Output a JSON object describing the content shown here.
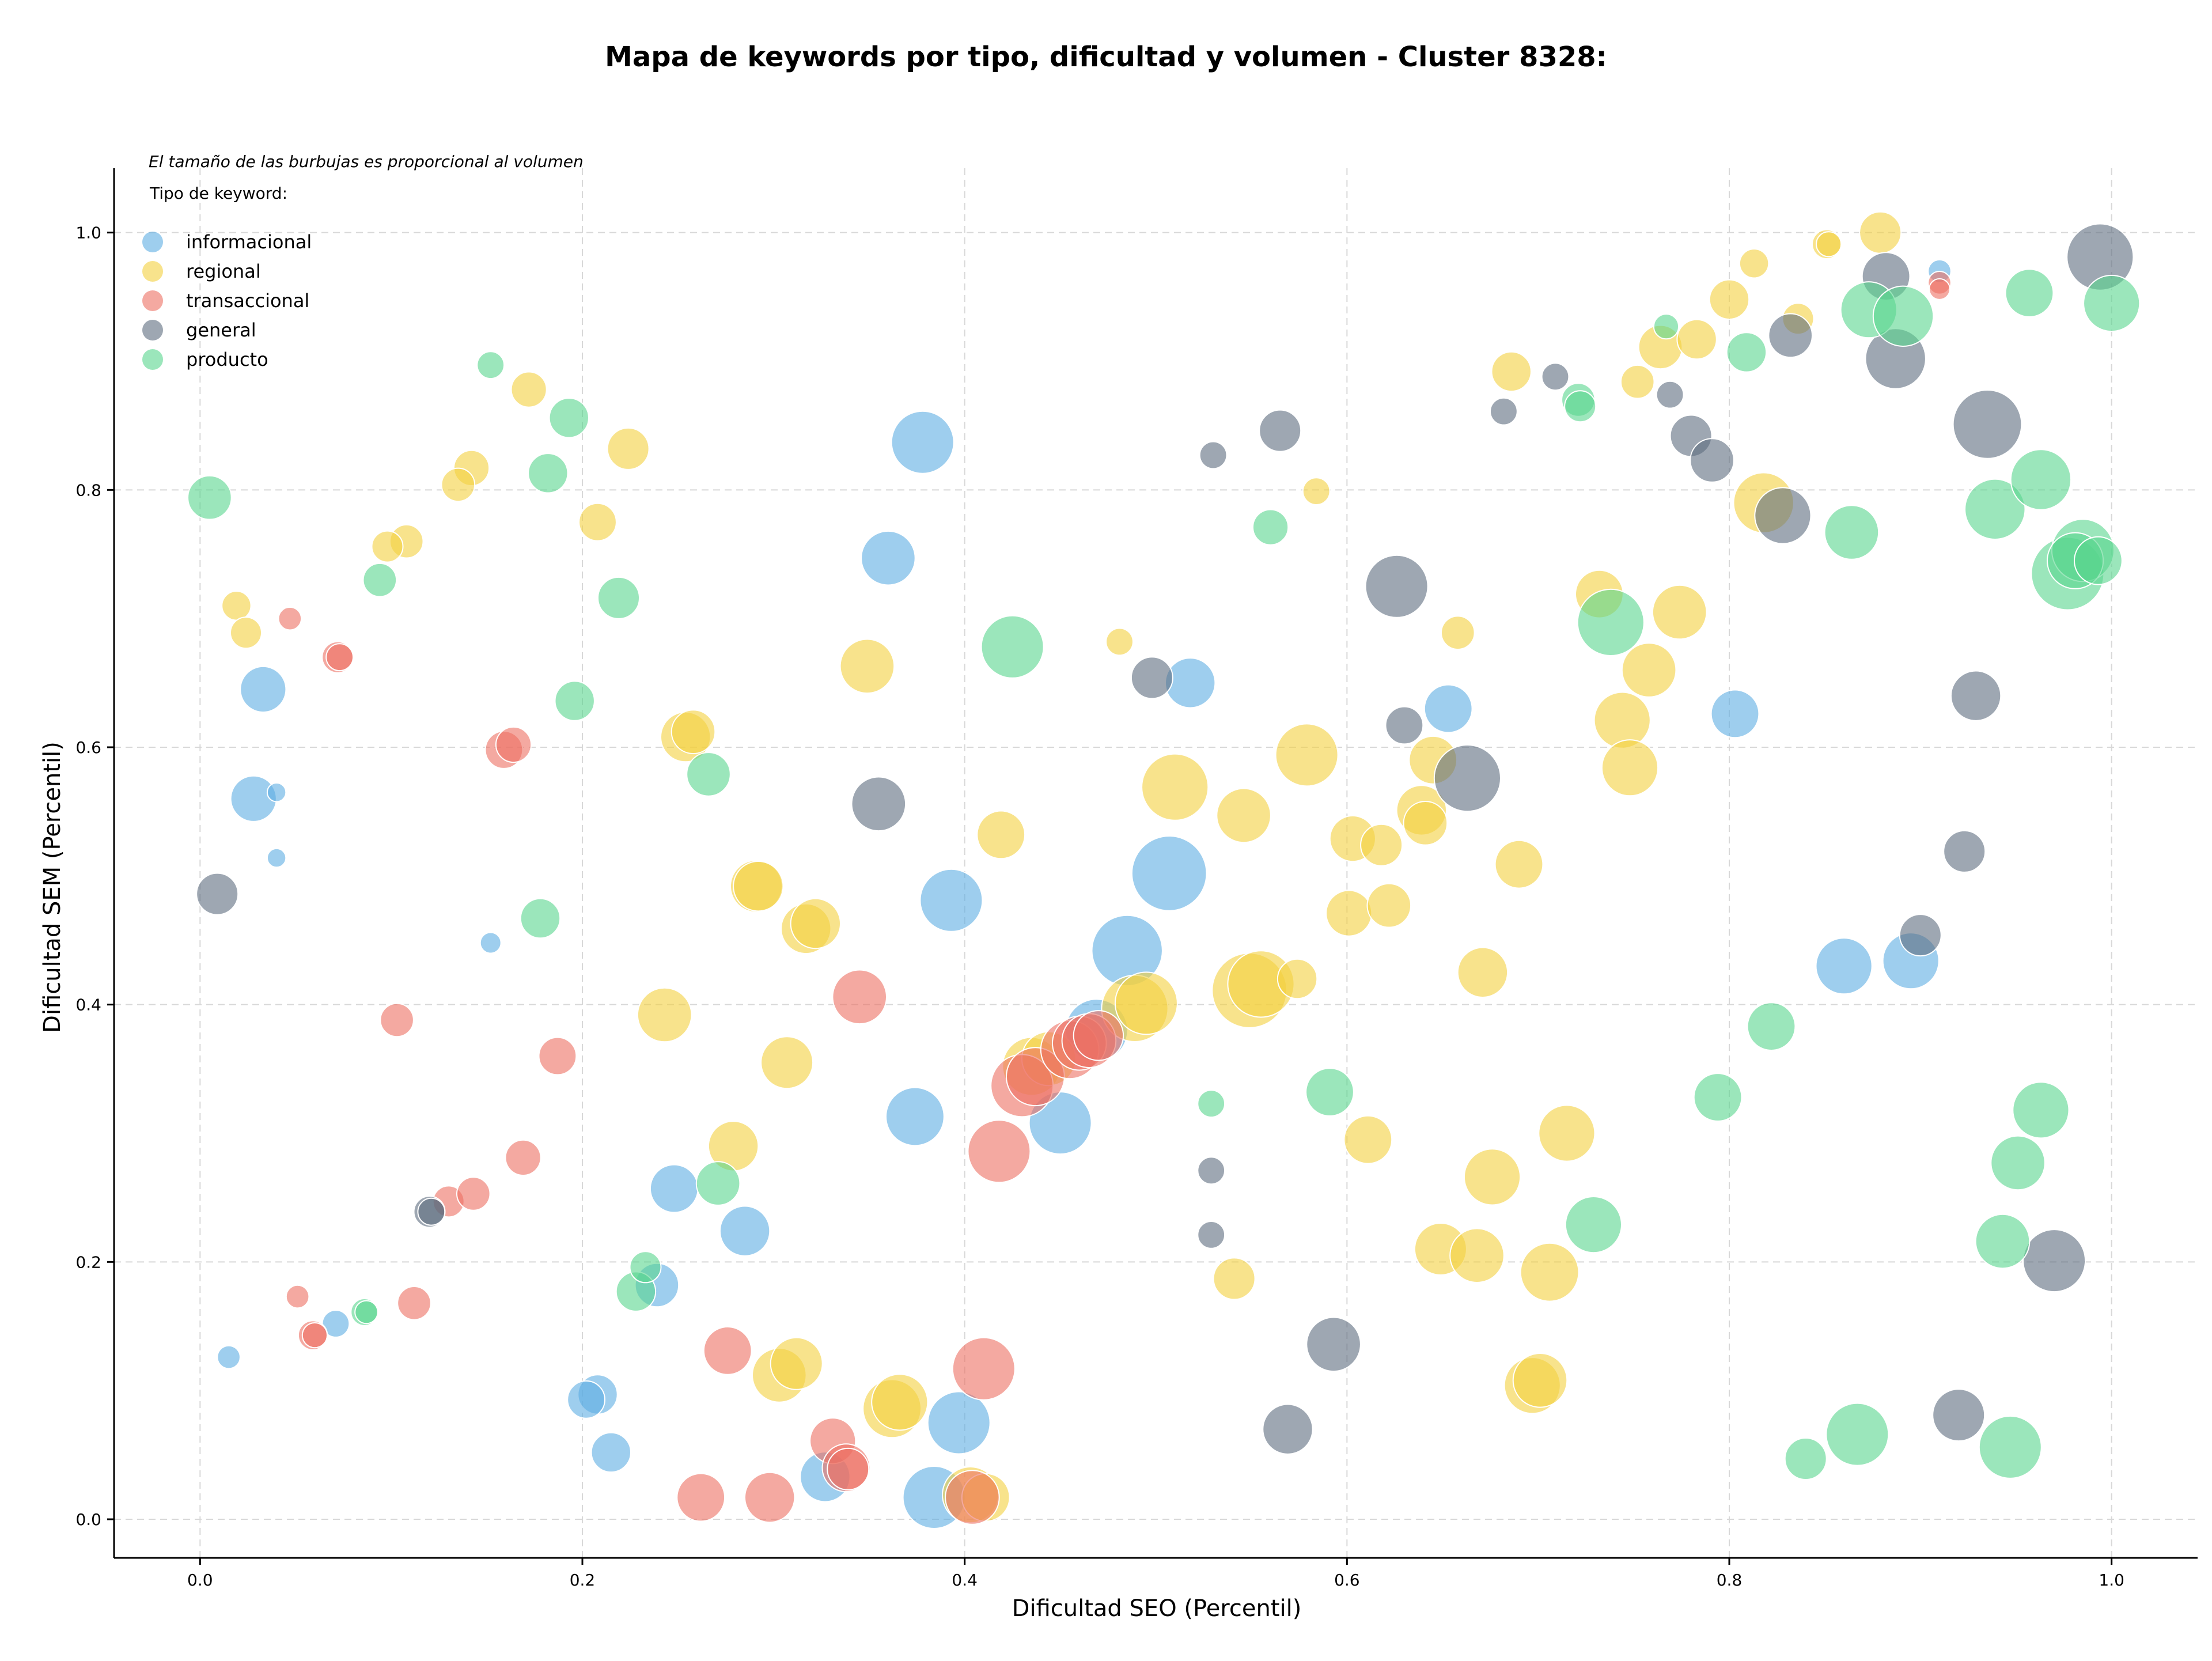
{
  "chart_data": {
    "type": "scatter",
    "title": "Mapa de keywords por tipo, dificultad y volumen - Cluster 8328:",
    "xlabel": "Dificultad SEO (Percentil)",
    "ylabel": "Dificultad SEM (Percentil)",
    "xlim": [
      -0.045,
      1.045
    ],
    "ylim": [
      -0.03,
      1.05
    ],
    "xticks": [
      "0.0",
      "0.2",
      "0.4",
      "0.6",
      "0.8",
      "1.0"
    ],
    "yticks": [
      "0.0",
      "0.2",
      "0.4",
      "0.6",
      "0.8",
      "1.0"
    ],
    "grid": true,
    "legend_title": "Tipo de keyword:",
    "legend_position": "top-left",
    "note": "El tamaño de las burbujas es proporcional al volumen",
    "series": [
      {
        "name": "informacional",
        "color": "#5DADE2",
        "points": [
          [
            0.378,
            0.837,
            3.0
          ],
          [
            0.36,
            0.747,
            2.6
          ],
          [
            0.033,
            0.645,
            2.2
          ],
          [
            0.028,
            0.56,
            2.2
          ],
          [
            0.04,
            0.565,
            0.9
          ],
          [
            0.04,
            0.514,
            0.9
          ],
          [
            0.152,
            0.448,
            1.0
          ],
          [
            0.393,
            0.481,
            3.0
          ],
          [
            0.518,
            0.65,
            2.4
          ],
          [
            0.653,
            0.63,
            2.3
          ],
          [
            0.803,
            0.626,
            2.3
          ],
          [
            0.507,
            0.502,
            3.6
          ],
          [
            0.485,
            0.442,
            3.4
          ],
          [
            0.469,
            0.38,
            3.0
          ],
          [
            0.45,
            0.308,
            3.0
          ],
          [
            0.374,
            0.313,
            2.8
          ],
          [
            0.248,
            0.257,
            2.3
          ],
          [
            0.285,
            0.224,
            2.4
          ],
          [
            0.239,
            0.182,
            2.1
          ],
          [
            0.208,
            0.097,
            1.9
          ],
          [
            0.202,
            0.093,
            1.8
          ],
          [
            0.215,
            0.052,
            1.9
          ],
          [
            0.327,
            0.033,
            2.4
          ],
          [
            0.397,
            0.075,
            3.0
          ],
          [
            0.384,
            0.017,
            3.0
          ],
          [
            0.071,
            0.152,
            1.3
          ],
          [
            0.015,
            0.126,
            1.1
          ],
          [
            0.86,
            0.43,
            2.7
          ],
          [
            0.895,
            0.434,
            2.7
          ],
          [
            0.91,
            0.97,
            1.1
          ]
        ]
      },
      {
        "name": "regional",
        "color": "#F4D03F",
        "points": [
          [
            0.172,
            0.878,
            1.7
          ],
          [
            0.224,
            0.832,
            2.0
          ],
          [
            0.142,
            0.817,
            1.7
          ],
          [
            0.135,
            0.804,
            1.6
          ],
          [
            0.208,
            0.775,
            1.8
          ],
          [
            0.108,
            0.76,
            1.6
          ],
          [
            0.098,
            0.756,
            1.5
          ],
          [
            0.019,
            0.71,
            1.4
          ],
          [
            0.024,
            0.689,
            1.5
          ],
          [
            0.254,
            0.608,
            2.4
          ],
          [
            0.258,
            0.612,
            2.1
          ],
          [
            0.349,
            0.663,
            2.6
          ],
          [
            0.419,
            0.532,
            2.3
          ],
          [
            0.481,
            0.682,
            1.3
          ],
          [
            0.51,
            0.569,
            3.2
          ],
          [
            0.546,
            0.547,
            2.6
          ],
          [
            0.579,
            0.594,
            3.0
          ],
          [
            0.584,
            0.799,
            1.3
          ],
          [
            0.658,
            0.689,
            1.6
          ],
          [
            0.645,
            0.59,
            2.3
          ],
          [
            0.603,
            0.529,
            2.2
          ],
          [
            0.618,
            0.524,
            2.0
          ],
          [
            0.639,
            0.551,
            2.4
          ],
          [
            0.641,
            0.541,
            2.1
          ],
          [
            0.69,
            0.509,
            2.3
          ],
          [
            0.601,
            0.471,
            2.2
          ],
          [
            0.622,
            0.477,
            2.1
          ],
          [
            0.671,
            0.425,
            2.4
          ],
          [
            0.732,
            0.719,
            2.3
          ],
          [
            0.774,
            0.705,
            2.6
          ],
          [
            0.758,
            0.66,
            2.6
          ],
          [
            0.744,
            0.621,
            2.7
          ],
          [
            0.748,
            0.584,
            2.7
          ],
          [
            0.291,
            0.492,
            2.5
          ],
          [
            0.292,
            0.492,
            2.4
          ],
          [
            0.317,
            0.459,
            2.4
          ],
          [
            0.322,
            0.463,
            2.4
          ],
          [
            0.243,
            0.392,
            2.6
          ],
          [
            0.307,
            0.355,
            2.5
          ],
          [
            0.279,
            0.29,
            2.4
          ],
          [
            0.549,
            0.411,
            3.6
          ],
          [
            0.555,
            0.416,
            3.2
          ],
          [
            0.574,
            0.42,
            1.9
          ],
          [
            0.489,
            0.397,
            3.2
          ],
          [
            0.495,
            0.401,
            3.0
          ],
          [
            0.435,
            0.352,
            2.8
          ],
          [
            0.444,
            0.358,
            2.6
          ],
          [
            0.611,
            0.295,
            2.3
          ],
          [
            0.676,
            0.266,
            2.7
          ],
          [
            0.715,
            0.3,
            2.7
          ],
          [
            0.649,
            0.21,
            2.5
          ],
          [
            0.668,
            0.205,
            2.6
          ],
          [
            0.706,
            0.192,
            2.8
          ],
          [
            0.541,
            0.187,
            2.0
          ],
          [
            0.697,
            0.104,
            2.7
          ],
          [
            0.701,
            0.108,
            2.6
          ],
          [
            0.303,
            0.112,
            2.6
          ],
          [
            0.312,
            0.121,
            2.5
          ],
          [
            0.362,
            0.086,
            2.8
          ],
          [
            0.366,
            0.091,
            2.7
          ],
          [
            0.403,
            0.019,
            2.7
          ],
          [
            0.411,
            0.017,
            2.3
          ],
          [
            0.686,
            0.892,
            1.9
          ],
          [
            0.752,
            0.884,
            1.6
          ],
          [
            0.764,
            0.911,
            2.1
          ],
          [
            0.783,
            0.917,
            1.9
          ],
          [
            0.8,
            0.948,
            1.9
          ],
          [
            0.813,
            0.976,
            1.4
          ],
          [
            0.851,
            0.991,
            1.4
          ],
          [
            0.852,
            0.991,
            1.2
          ],
          [
            0.879,
            1.0,
            2.0
          ],
          [
            0.836,
            0.933,
            1.5
          ],
          [
            0.818,
            0.79,
            2.9
          ]
        ]
      },
      {
        "name": "transaccional",
        "color": "#EC7063",
        "points": [
          [
            0.047,
            0.7,
            1.1
          ],
          [
            0.072,
            0.67,
            1.5
          ],
          [
            0.073,
            0.67,
            1.3
          ],
          [
            0.159,
            0.598,
            1.8
          ],
          [
            0.164,
            0.602,
            1.7
          ],
          [
            0.103,
            0.388,
            1.6
          ],
          [
            0.187,
            0.36,
            1.8
          ],
          [
            0.345,
            0.406,
            2.6
          ],
          [
            0.43,
            0.337,
            3.0
          ],
          [
            0.437,
            0.344,
            2.8
          ],
          [
            0.455,
            0.365,
            2.8
          ],
          [
            0.46,
            0.37,
            2.6
          ],
          [
            0.465,
            0.372,
            2.6
          ],
          [
            0.47,
            0.376,
            2.4
          ],
          [
            0.418,
            0.286,
            3.0
          ],
          [
            0.169,
            0.281,
            1.7
          ],
          [
            0.13,
            0.247,
            1.5
          ],
          [
            0.143,
            0.253,
            1.6
          ],
          [
            0.051,
            0.173,
            1.1
          ],
          [
            0.059,
            0.143,
            1.4
          ],
          [
            0.06,
            0.143,
            1.2
          ],
          [
            0.112,
            0.168,
            1.6
          ],
          [
            0.276,
            0.131,
            2.3
          ],
          [
            0.331,
            0.061,
            2.2
          ],
          [
            0.338,
            0.04,
            2.3
          ],
          [
            0.339,
            0.039,
            2.0
          ],
          [
            0.41,
            0.117,
            3.0
          ],
          [
            0.262,
            0.017,
            2.3
          ],
          [
            0.298,
            0.017,
            2.4
          ],
          [
            0.404,
            0.017,
            2.6
          ],
          [
            0.91,
            0.961,
            1.1
          ],
          [
            0.91,
            0.956,
            1.0
          ]
        ]
      },
      {
        "name": "general",
        "color": "#5D6D7E",
        "points": [
          [
            0.009,
            0.486,
            2.0
          ],
          [
            0.355,
            0.556,
            2.6
          ],
          [
            0.12,
            0.239,
            1.5
          ],
          [
            0.121,
            0.239,
            1.3
          ],
          [
            0.498,
            0.654,
            2.0
          ],
          [
            0.53,
            0.827,
            1.3
          ],
          [
            0.565,
            0.846,
            2.0
          ],
          [
            0.626,
            0.725,
            3.0
          ],
          [
            0.63,
            0.617,
            1.8
          ],
          [
            0.663,
            0.576,
            3.2
          ],
          [
            0.529,
            0.271,
            1.3
          ],
          [
            0.529,
            0.221,
            1.3
          ],
          [
            0.593,
            0.136,
            2.6
          ],
          [
            0.569,
            0.07,
            2.4
          ],
          [
            0.682,
            0.861,
            1.3
          ],
          [
            0.709,
            0.888,
            1.3
          ],
          [
            0.769,
            0.874,
            1.3
          ],
          [
            0.78,
            0.842,
            2.0
          ],
          [
            0.791,
            0.823,
            2.1
          ],
          [
            0.828,
            0.78,
            2.7
          ],
          [
            0.832,
            0.92,
            2.1
          ],
          [
            0.882,
            0.966,
            2.3
          ],
          [
            0.887,
            0.902,
            2.9
          ],
          [
            0.935,
            0.851,
            3.3
          ],
          [
            0.929,
            0.64,
            2.4
          ],
          [
            0.923,
            0.519,
            2.0
          ],
          [
            0.9,
            0.454,
            2.0
          ],
          [
            0.97,
            0.201,
            3.0
          ],
          [
            0.92,
            0.081,
            2.5
          ],
          [
            0.994,
            0.981,
            3.2
          ]
        ]
      },
      {
        "name": "producto",
        "color": "#58D68D",
        "points": [
          [
            0.005,
            0.794,
            2.1
          ],
          [
            0.152,
            0.897,
            1.3
          ],
          [
            0.193,
            0.856,
            1.9
          ],
          [
            0.182,
            0.813,
            1.9
          ],
          [
            0.094,
            0.73,
            1.6
          ],
          [
            0.219,
            0.716,
            2.0
          ],
          [
            0.196,
            0.636,
            1.9
          ],
          [
            0.266,
            0.579,
            2.1
          ],
          [
            0.178,
            0.467,
            1.9
          ],
          [
            0.425,
            0.678,
            3.0
          ],
          [
            0.56,
            0.771,
            1.7
          ],
          [
            0.529,
            0.323,
            1.3
          ],
          [
            0.271,
            0.261,
            2.1
          ],
          [
            0.228,
            0.177,
            1.9
          ],
          [
            0.233,
            0.196,
            1.5
          ],
          [
            0.086,
            0.161,
            1.3
          ],
          [
            0.087,
            0.161,
            1.1
          ],
          [
            0.591,
            0.332,
            2.3
          ],
          [
            0.822,
            0.383,
            2.3
          ],
          [
            0.794,
            0.328,
            2.3
          ],
          [
            0.729,
            0.229,
            2.7
          ],
          [
            0.738,
            0.697,
            3.2
          ],
          [
            0.721,
            0.87,
            1.6
          ],
          [
            0.722,
            0.865,
            1.5
          ],
          [
            0.767,
            0.927,
            1.2
          ],
          [
            0.809,
            0.907,
            1.9
          ],
          [
            0.873,
            0.94,
            2.7
          ],
          [
            0.891,
            0.935,
            2.9
          ],
          [
            0.957,
            0.953,
            2.3
          ],
          [
            1.0,
            0.945,
            2.7
          ],
          [
            0.864,
            0.767,
            2.6
          ],
          [
            0.939,
            0.785,
            2.9
          ],
          [
            0.963,
            0.808,
            2.9
          ],
          [
            0.977,
            0.735,
            3.5
          ],
          [
            0.985,
            0.753,
            3.0
          ],
          [
            0.981,
            0.745,
            2.7
          ],
          [
            0.993,
            0.745,
            2.3
          ],
          [
            0.963,
            0.318,
            2.7
          ],
          [
            0.951,
            0.277,
            2.6
          ],
          [
            0.943,
            0.216,
            2.6
          ],
          [
            0.947,
            0.056,
            3.0
          ],
          [
            0.867,
            0.066,
            3.0
          ],
          [
            0.84,
            0.047,
            2.0
          ]
        ]
      }
    ]
  }
}
